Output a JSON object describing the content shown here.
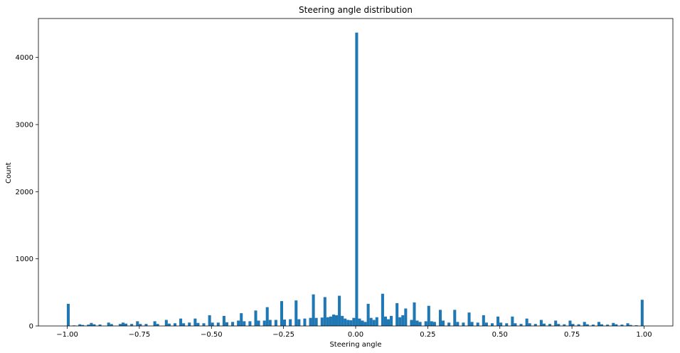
{
  "chart_data": {
    "type": "bar",
    "title": "Steering angle distribution",
    "xlabel": "Steering angle",
    "ylabel": "Count",
    "xlim": [
      -1.1,
      1.1
    ],
    "ylim": [
      0,
      4580
    ],
    "xticks": [
      -1.0,
      -0.75,
      -0.5,
      -0.25,
      0.0,
      0.25,
      0.5,
      0.75,
      1.0
    ],
    "xtick_labels": [
      "−1.00",
      "−0.75",
      "−0.50",
      "−0.25",
      "0.00",
      "0.25",
      "0.50",
      "0.75",
      "1.00"
    ],
    "yticks": [
      0,
      1000,
      2000,
      3000,
      4000
    ],
    "ytick_labels": [
      "0",
      "1000",
      "2000",
      "3000",
      "4000"
    ],
    "bar_color": "#1f77b4",
    "grid": false,
    "bin_width": 0.01,
    "bins": [
      [
        -1.0,
        330
      ],
      [
        -0.98,
        8
      ],
      [
        -0.96,
        25
      ],
      [
        -0.95,
        15
      ],
      [
        -0.93,
        20
      ],
      [
        -0.92,
        45
      ],
      [
        -0.91,
        25
      ],
      [
        -0.89,
        22
      ],
      [
        -0.86,
        50
      ],
      [
        -0.85,
        28
      ],
      [
        -0.82,
        30
      ],
      [
        -0.81,
        50
      ],
      [
        -0.8,
        35
      ],
      [
        -0.78,
        30
      ],
      [
        -0.76,
        70
      ],
      [
        -0.75,
        30
      ],
      [
        -0.73,
        30
      ],
      [
        -0.7,
        70
      ],
      [
        -0.69,
        30
      ],
      [
        -0.66,
        90
      ],
      [
        -0.65,
        35
      ],
      [
        -0.63,
        40
      ],
      [
        -0.61,
        110
      ],
      [
        -0.6,
        40
      ],
      [
        -0.58,
        50
      ],
      [
        -0.56,
        110
      ],
      [
        -0.55,
        45
      ],
      [
        -0.53,
        40
      ],
      [
        -0.51,
        160
      ],
      [
        -0.5,
        50
      ],
      [
        -0.48,
        50
      ],
      [
        -0.46,
        150
      ],
      [
        -0.45,
        55
      ],
      [
        -0.43,
        60
      ],
      [
        -0.41,
        80
      ],
      [
        -0.4,
        190
      ],
      [
        -0.39,
        70
      ],
      [
        -0.37,
        70
      ],
      [
        -0.35,
        230
      ],
      [
        -0.34,
        80
      ],
      [
        -0.32,
        80
      ],
      [
        -0.31,
        280
      ],
      [
        -0.3,
        90
      ],
      [
        -0.28,
        90
      ],
      [
        -0.26,
        370
      ],
      [
        -0.25,
        95
      ],
      [
        -0.23,
        100
      ],
      [
        -0.21,
        380
      ],
      [
        -0.2,
        100
      ],
      [
        -0.18,
        110
      ],
      [
        -0.16,
        120
      ],
      [
        -0.15,
        470
      ],
      [
        -0.14,
        120
      ],
      [
        -0.12,
        125
      ],
      [
        -0.11,
        430
      ],
      [
        -0.1,
        130
      ],
      [
        -0.09,
        140
      ],
      [
        -0.08,
        170
      ],
      [
        -0.07,
        160
      ],
      [
        -0.06,
        450
      ],
      [
        -0.05,
        150
      ],
      [
        -0.04,
        110
      ],
      [
        -0.03,
        90
      ],
      [
        -0.02,
        85
      ],
      [
        -0.01,
        120
      ],
      [
        0.0,
        4370
      ],
      [
        0.01,
        110
      ],
      [
        0.02,
        80
      ],
      [
        0.03,
        60
      ],
      [
        0.04,
        330
      ],
      [
        0.05,
        120
      ],
      [
        0.06,
        90
      ],
      [
        0.07,
        130
      ],
      [
        0.09,
        480
      ],
      [
        0.1,
        140
      ],
      [
        0.11,
        100
      ],
      [
        0.12,
        150
      ],
      [
        0.14,
        340
      ],
      [
        0.15,
        130
      ],
      [
        0.16,
        160
      ],
      [
        0.17,
        260
      ],
      [
        0.19,
        90
      ],
      [
        0.2,
        350
      ],
      [
        0.21,
        80
      ],
      [
        0.22,
        60
      ],
      [
        0.24,
        70
      ],
      [
        0.25,
        300
      ],
      [
        0.26,
        70
      ],
      [
        0.27,
        60
      ],
      [
        0.29,
        240
      ],
      [
        0.3,
        80
      ],
      [
        0.32,
        50
      ],
      [
        0.34,
        240
      ],
      [
        0.35,
        60
      ],
      [
        0.37,
        50
      ],
      [
        0.39,
        200
      ],
      [
        0.4,
        60
      ],
      [
        0.42,
        50
      ],
      [
        0.44,
        160
      ],
      [
        0.45,
        50
      ],
      [
        0.47,
        40
      ],
      [
        0.49,
        140
      ],
      [
        0.5,
        50
      ],
      [
        0.52,
        40
      ],
      [
        0.54,
        140
      ],
      [
        0.55,
        40
      ],
      [
        0.57,
        30
      ],
      [
        0.59,
        110
      ],
      [
        0.6,
        40
      ],
      [
        0.62,
        30
      ],
      [
        0.64,
        90
      ],
      [
        0.65,
        35
      ],
      [
        0.67,
        30
      ],
      [
        0.69,
        80
      ],
      [
        0.7,
        30
      ],
      [
        0.72,
        25
      ],
      [
        0.74,
        80
      ],
      [
        0.75,
        30
      ],
      [
        0.77,
        25
      ],
      [
        0.79,
        60
      ],
      [
        0.8,
        25
      ],
      [
        0.82,
        20
      ],
      [
        0.84,
        60
      ],
      [
        0.85,
        25
      ],
      [
        0.87,
        20
      ],
      [
        0.89,
        45
      ],
      [
        0.9,
        25
      ],
      [
        0.92,
        20
      ],
      [
        0.94,
        40
      ],
      [
        0.95,
        15
      ],
      [
        0.97,
        10
      ],
      [
        0.99,
        390
      ]
    ]
  }
}
